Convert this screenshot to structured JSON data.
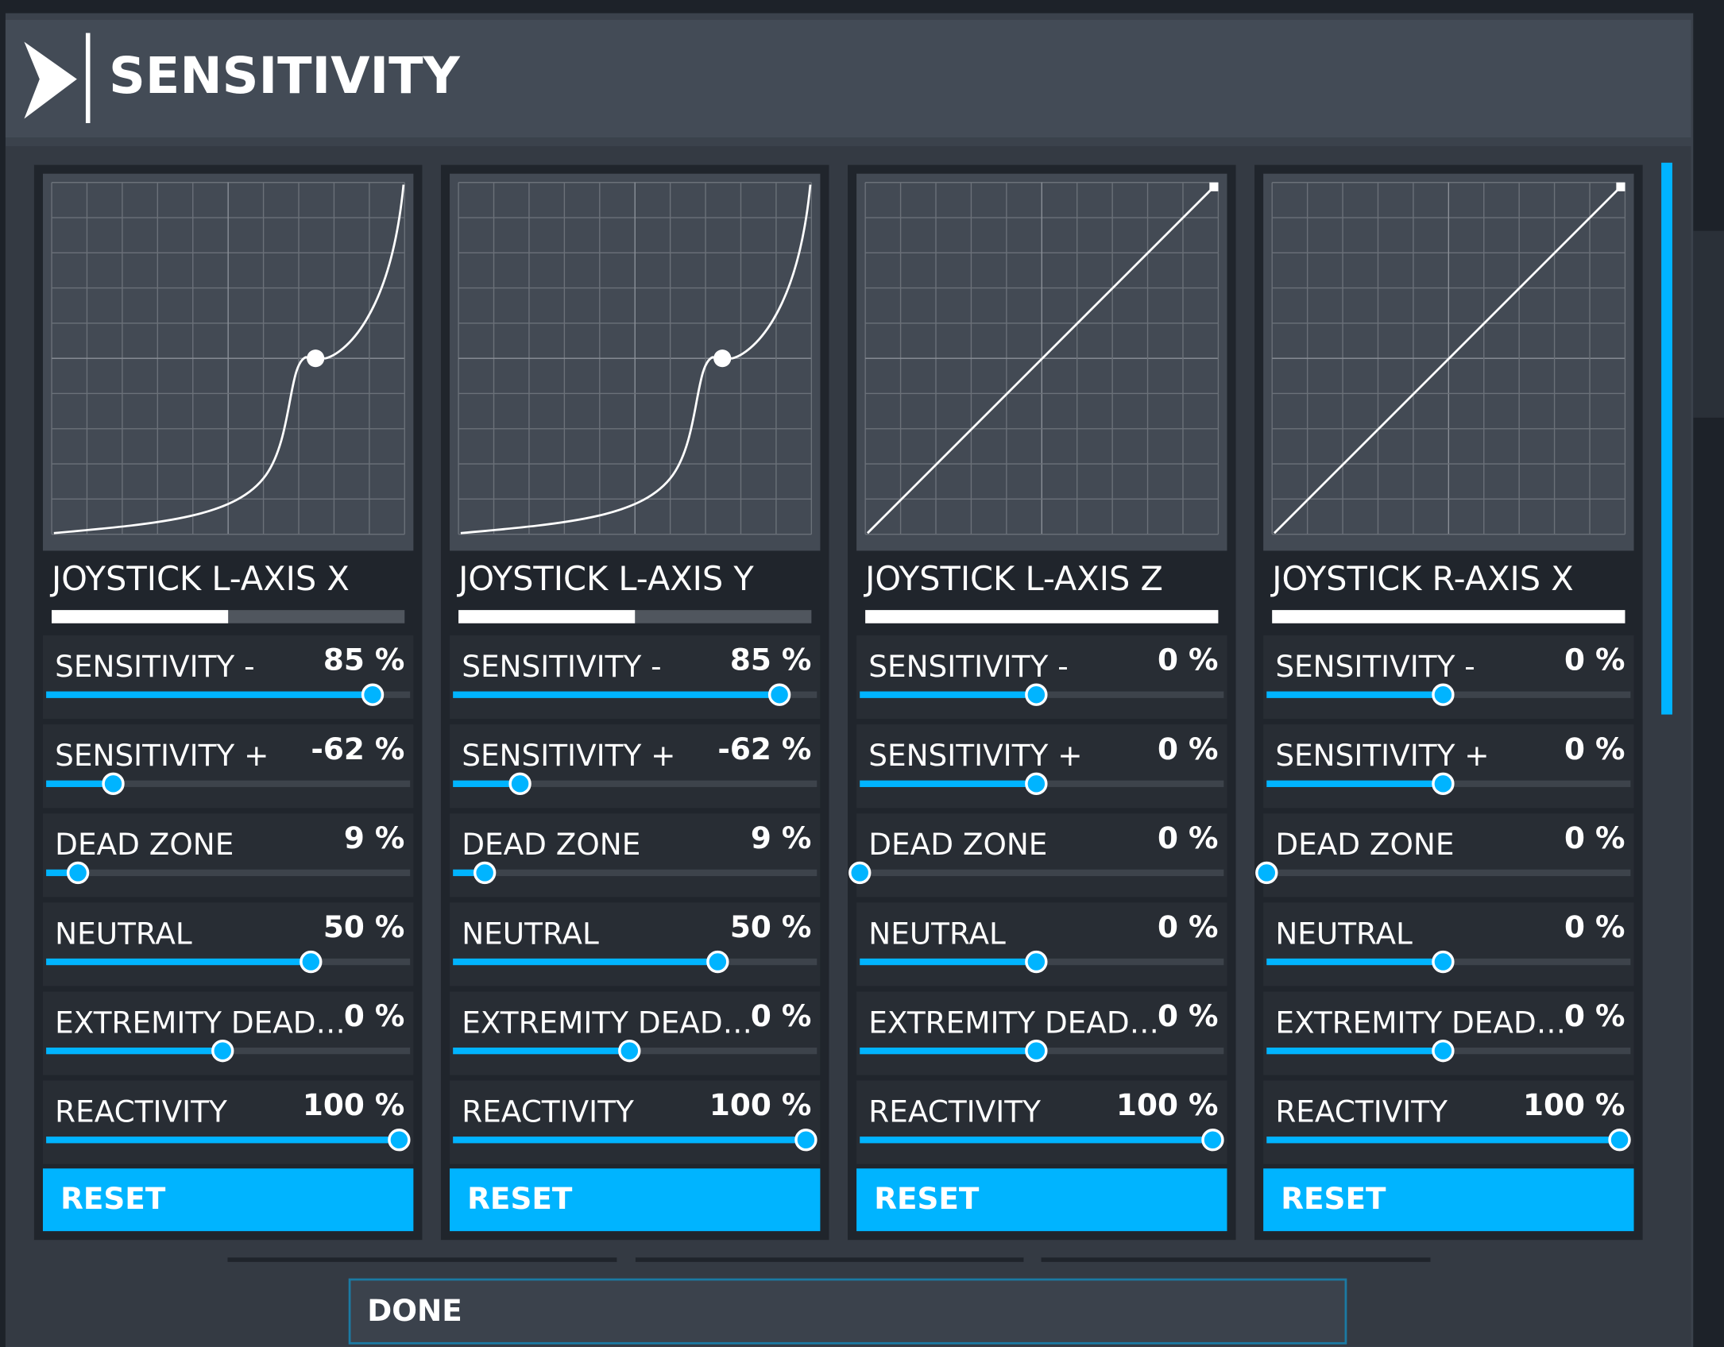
{
  "header": {
    "title": "SENSITIVITY"
  },
  "panels": [
    {
      "name": "JOYSTICK L-AXIS X",
      "input": 50,
      "reset": "RESET",
      "settings": [
        {
          "label": "SENSITIVITY -",
          "value": 85,
          "value_label": "85 %",
          "range": [
            -100,
            100
          ]
        },
        {
          "label": "SENSITIVITY +",
          "value": -62,
          "value_label": "-62 %",
          "range": [
            -100,
            100
          ]
        },
        {
          "label": "DEAD ZONE",
          "value": 9,
          "value_label": "9 %",
          "range": [
            0,
            100
          ]
        },
        {
          "label": "NEUTRAL",
          "value": 50,
          "value_label": "50 %",
          "range": [
            -100,
            100
          ]
        },
        {
          "label": "EXTREMITY DEAD…",
          "value": 0,
          "value_label": "0 %",
          "range": [
            -100,
            100
          ]
        },
        {
          "label": "REACTIVITY",
          "value": 100,
          "value_label": "100 %",
          "range": [
            0,
            100
          ]
        }
      ]
    },
    {
      "name": "JOYSTICK L-AXIS Y",
      "input": 50,
      "reset": "RESET",
      "settings": [
        {
          "label": "SENSITIVITY -",
          "value": 85,
          "value_label": "85 %",
          "range": [
            -100,
            100
          ]
        },
        {
          "label": "SENSITIVITY +",
          "value": -62,
          "value_label": "-62 %",
          "range": [
            -100,
            100
          ]
        },
        {
          "label": "DEAD ZONE",
          "value": 9,
          "value_label": "9 %",
          "range": [
            0,
            100
          ]
        },
        {
          "label": "NEUTRAL",
          "value": 50,
          "value_label": "50 %",
          "range": [
            -100,
            100
          ]
        },
        {
          "label": "EXTREMITY DEAD…",
          "value": 0,
          "value_label": "0 %",
          "range": [
            -100,
            100
          ]
        },
        {
          "label": "REACTIVITY",
          "value": 100,
          "value_label": "100 %",
          "range": [
            0,
            100
          ]
        }
      ]
    },
    {
      "name": "JOYSTICK L-AXIS Z",
      "input": 100,
      "reset": "RESET",
      "settings": [
        {
          "label": "SENSITIVITY -",
          "value": 0,
          "value_label": "0 %",
          "range": [
            -100,
            100
          ]
        },
        {
          "label": "SENSITIVITY +",
          "value": 0,
          "value_label": "0 %",
          "range": [
            -100,
            100
          ]
        },
        {
          "label": "DEAD ZONE",
          "value": 0,
          "value_label": "0 %",
          "range": [
            0,
            100
          ]
        },
        {
          "label": "NEUTRAL",
          "value": 0,
          "value_label": "0 %",
          "range": [
            -100,
            100
          ]
        },
        {
          "label": "EXTREMITY DEAD…",
          "value": 0,
          "value_label": "0 %",
          "range": [
            -100,
            100
          ]
        },
        {
          "label": "REACTIVITY",
          "value": 100,
          "value_label": "100 %",
          "range": [
            0,
            100
          ]
        }
      ]
    },
    {
      "name": "JOYSTICK R-AXIS X",
      "input": 100,
      "reset": "RESET",
      "settings": [
        {
          "label": "SENSITIVITY -",
          "value": 0,
          "value_label": "0 %",
          "range": [
            -100,
            100
          ]
        },
        {
          "label": "SENSITIVITY +",
          "value": 0,
          "value_label": "0 %",
          "range": [
            -100,
            100
          ]
        },
        {
          "label": "DEAD ZONE",
          "value": 0,
          "value_label": "0 %",
          "range": [
            0,
            100
          ]
        },
        {
          "label": "NEUTRAL",
          "value": 0,
          "value_label": "0 %",
          "range": [
            -100,
            100
          ]
        },
        {
          "label": "EXTREMITY DEAD…",
          "value": 0,
          "value_label": "0 %",
          "range": [
            -100,
            100
          ]
        },
        {
          "label": "REACTIVITY",
          "value": 100,
          "value_label": "100 %",
          "range": [
            0,
            100
          ]
        }
      ]
    }
  ],
  "done": "DONE"
}
